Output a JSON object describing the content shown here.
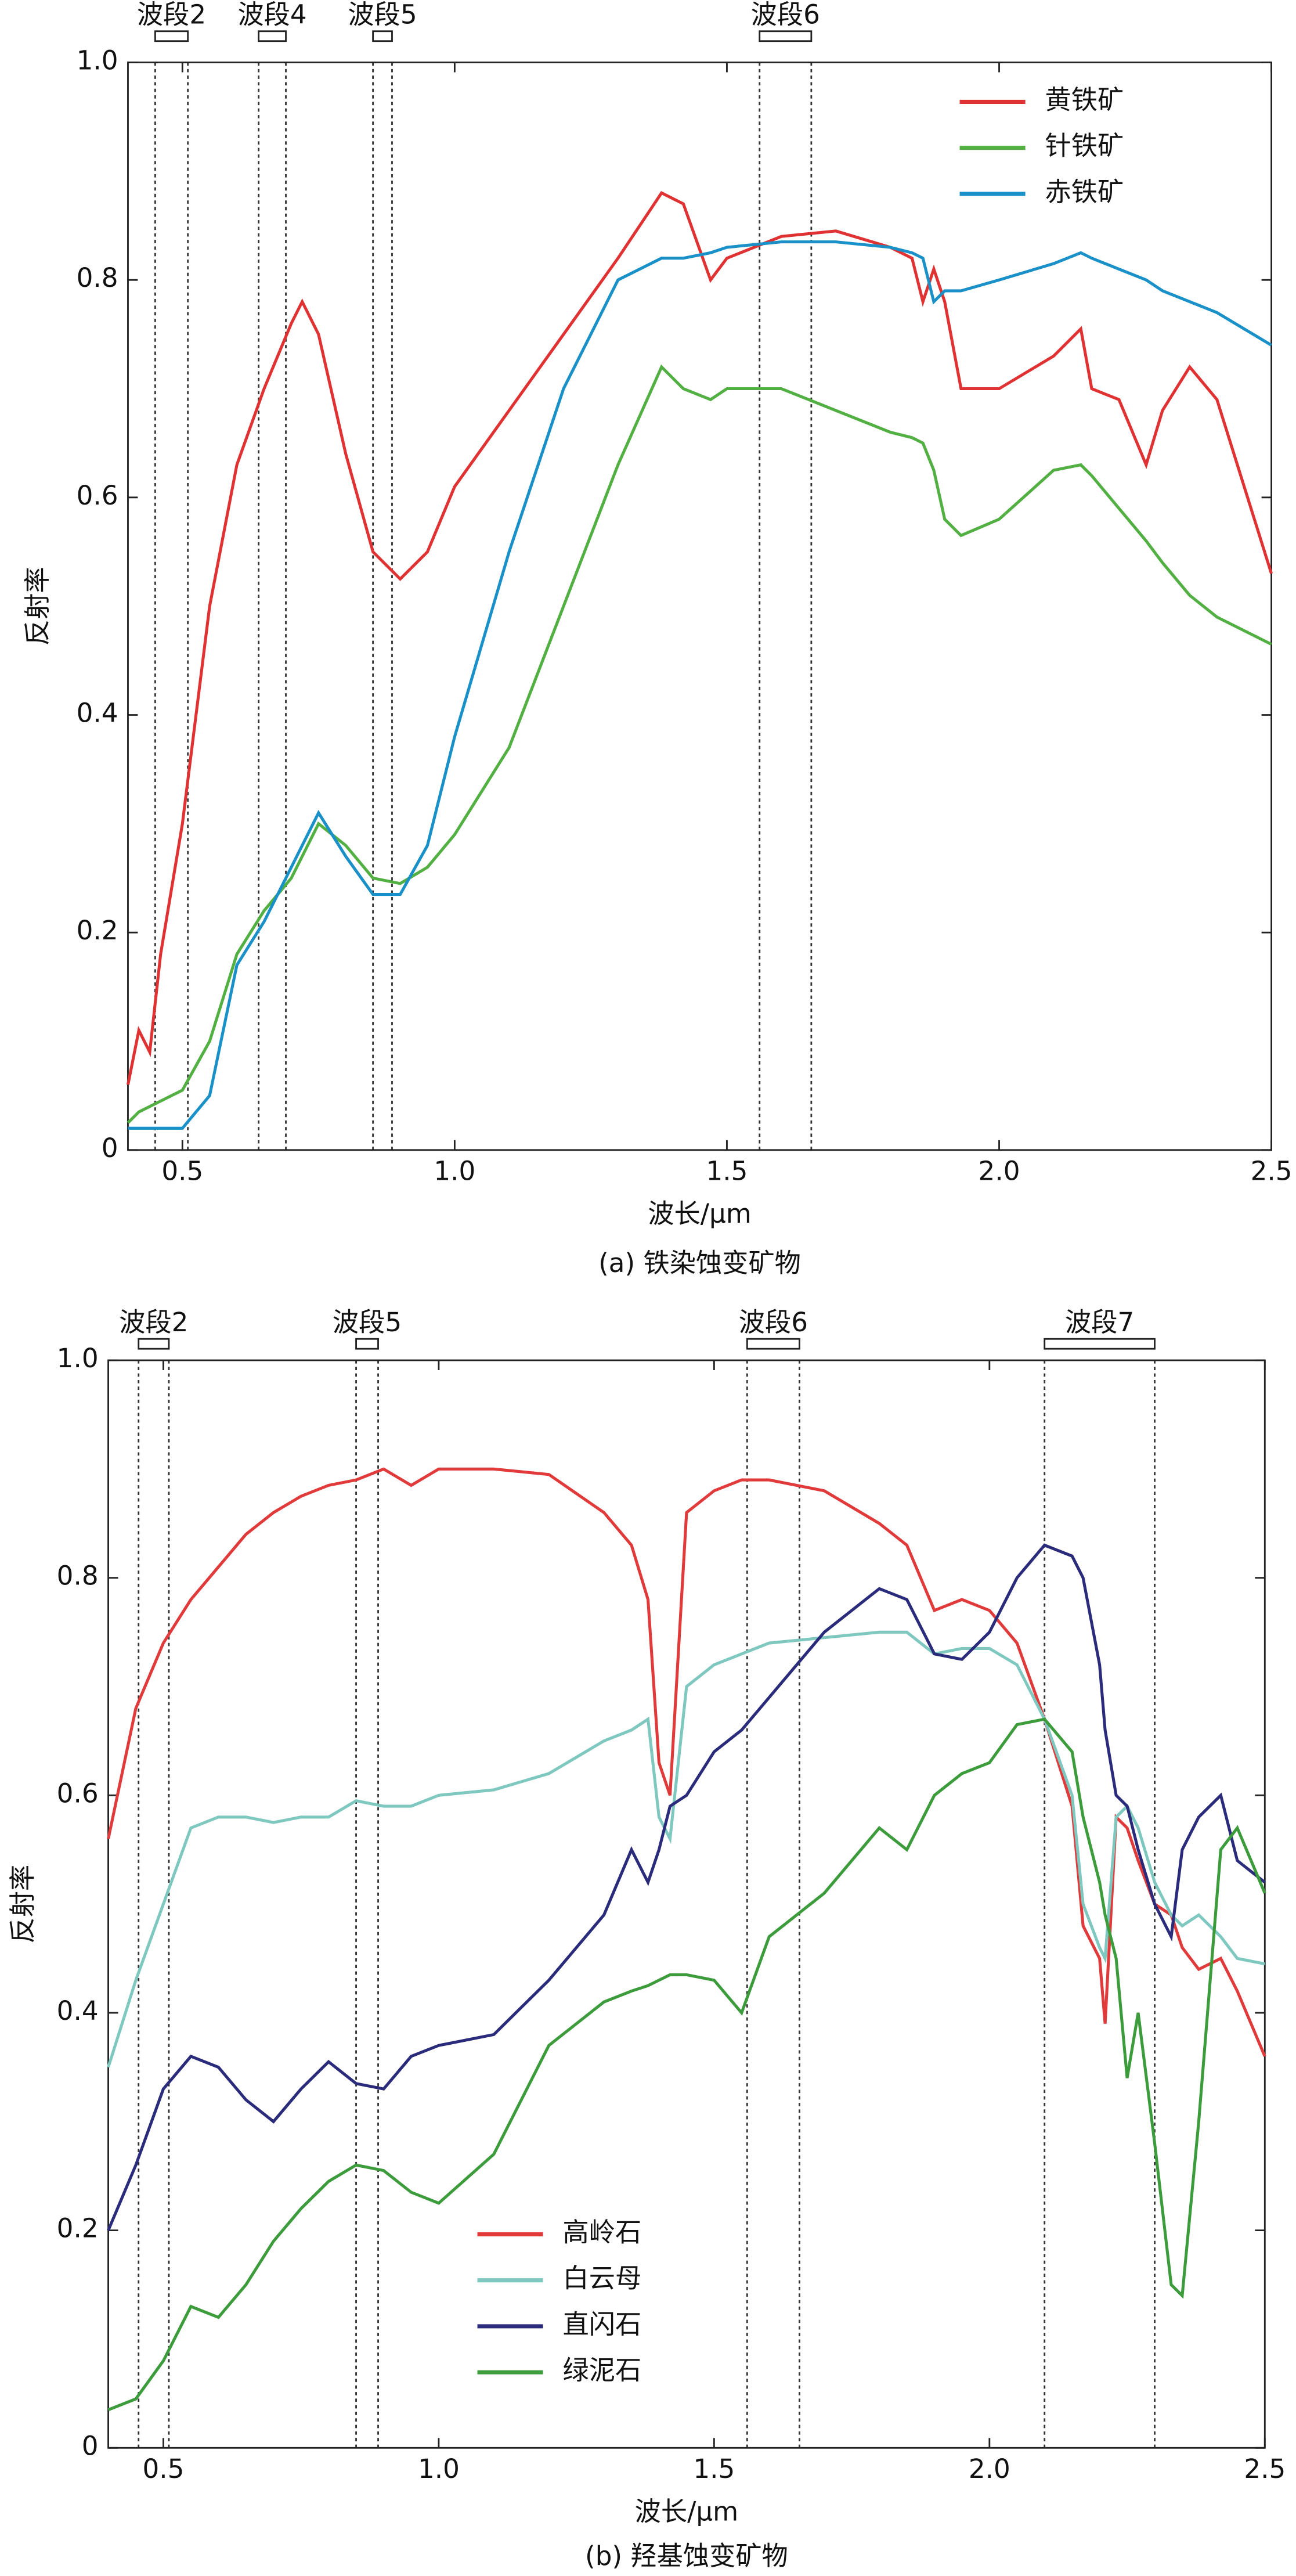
{
  "chart_data": [
    {
      "type": "line",
      "caption": "(a) 铁染蚀变矿物",
      "xlabel": "波长/μm",
      "ylabel": "反射率",
      "x": [
        0.4,
        0.42,
        0.44,
        0.46,
        0.5,
        0.55,
        0.6,
        0.65,
        0.7,
        0.72,
        0.75,
        0.8,
        0.85,
        0.9,
        0.95,
        1.0,
        1.1,
        1.2,
        1.3,
        1.38,
        1.42,
        1.47,
        1.5,
        1.6,
        1.7,
        1.8,
        1.84,
        1.86,
        1.88,
        1.9,
        1.93,
        2.0,
        2.1,
        2.15,
        2.17,
        2.22,
        2.27,
        2.3,
        2.35,
        2.4,
        2.5
      ],
      "series": [
        {
          "name": "黄铁矿",
          "color": "#e03232",
          "values": [
            0.06,
            0.11,
            0.09,
            0.18,
            0.3,
            0.5,
            0.63,
            0.7,
            0.76,
            0.78,
            0.75,
            0.64,
            0.55,
            0.525,
            0.55,
            0.61,
            0.68,
            0.75,
            0.82,
            0.88,
            0.87,
            0.8,
            0.82,
            0.84,
            0.845,
            0.83,
            0.82,
            0.78,
            0.81,
            0.78,
            0.7,
            0.7,
            0.73,
            0.755,
            0.7,
            0.69,
            0.63,
            0.68,
            0.72,
            0.69,
            0.53
          ]
        },
        {
          "name": "针铁矿",
          "color": "#52b043",
          "values": [
            0.025,
            0.035,
            0.04,
            0.045,
            0.055,
            0.1,
            0.18,
            0.22,
            0.25,
            0.27,
            0.3,
            0.28,
            0.25,
            0.245,
            0.26,
            0.29,
            0.37,
            0.5,
            0.63,
            0.72,
            0.7,
            0.69,
            0.7,
            0.7,
            0.68,
            0.66,
            0.655,
            0.65,
            0.625,
            0.58,
            0.565,
            0.58,
            0.625,
            0.63,
            0.62,
            0.59,
            0.56,
            0.54,
            0.51,
            0.49,
            0.465
          ]
        },
        {
          "name": "赤铁矿",
          "color": "#1a90c8",
          "values": [
            0.02,
            0.02,
            0.02,
            0.02,
            0.02,
            0.05,
            0.17,
            0.21,
            0.26,
            0.28,
            0.31,
            0.27,
            0.235,
            0.235,
            0.28,
            0.38,
            0.55,
            0.7,
            0.8,
            0.82,
            0.82,
            0.825,
            0.83,
            0.835,
            0.835,
            0.83,
            0.825,
            0.82,
            0.78,
            0.79,
            0.79,
            0.8,
            0.815,
            0.825,
            0.82,
            0.81,
            0.8,
            0.79,
            0.78,
            0.77,
            0.74
          ]
        }
      ],
      "xlim": [
        0.4,
        2.5
      ],
      "ylim": [
        0,
        1
      ],
      "xticks": [
        0.5,
        {
          "value": 1,
          "label": "1.0"
        },
        1.5,
        {
          "value": 2,
          "label": "2.0"
        },
        2.5
      ],
      "yticks": [
        0,
        0.2,
        0.4,
        0.6,
        0.8,
        {
          "value": 1,
          "label": "1.0"
        }
      ],
      "grid": false,
      "legend": "upper right",
      "bands": [
        {
          "label": "波段2",
          "start": 0.45,
          "end": 0.51
        },
        {
          "label": "波段4",
          "start": 0.64,
          "end": 0.69
        },
        {
          "label": "波段5",
          "start": 0.85,
          "end": 0.885
        },
        {
          "label": "波段6",
          "start": 1.56,
          "end": 1.655
        }
      ]
    },
    {
      "type": "line",
      "caption": "(b) 羟基蚀变矿物",
      "xlabel": "波长/μm",
      "ylabel": "反射率",
      "x": [
        0.4,
        0.45,
        0.5,
        0.55,
        0.6,
        0.65,
        0.7,
        0.75,
        0.8,
        0.85,
        0.9,
        0.95,
        1.0,
        1.1,
        1.2,
        1.3,
        1.35,
        1.38,
        1.4,
        1.42,
        1.45,
        1.5,
        1.55,
        1.6,
        1.7,
        1.8,
        1.85,
        1.9,
        1.95,
        2.0,
        2.05,
        2.1,
        2.15,
        2.17,
        2.2,
        2.21,
        2.23,
        2.25,
        2.27,
        2.3,
        2.33,
        2.35,
        2.38,
        2.42,
        2.45,
        2.5
      ],
      "series": [
        {
          "name": "高岭石",
          "color": "#e03a3a",
          "values": [
            0.56,
            0.68,
            0.74,
            0.78,
            0.81,
            0.84,
            0.86,
            0.875,
            0.885,
            0.89,
            0.9,
            0.885,
            0.9,
            0.9,
            0.895,
            0.86,
            0.83,
            0.78,
            0.63,
            0.6,
            0.86,
            0.88,
            0.89,
            0.89,
            0.88,
            0.85,
            0.83,
            0.77,
            0.78,
            0.77,
            0.74,
            0.67,
            0.59,
            0.48,
            0.45,
            0.39,
            0.58,
            0.57,
            0.54,
            0.5,
            0.49,
            0.46,
            0.44,
            0.45,
            0.42,
            0.36
          ]
        },
        {
          "name": "白云母",
          "color": "#7ec8c0",
          "values": [
            0.35,
            0.43,
            0.5,
            0.57,
            0.58,
            0.58,
            0.575,
            0.58,
            0.58,
            0.595,
            0.59,
            0.59,
            0.6,
            0.605,
            0.62,
            0.65,
            0.66,
            0.67,
            0.58,
            0.56,
            0.7,
            0.72,
            0.73,
            0.74,
            0.745,
            0.75,
            0.75,
            0.73,
            0.735,
            0.735,
            0.72,
            0.67,
            0.6,
            0.5,
            0.46,
            0.45,
            0.58,
            0.59,
            0.57,
            0.52,
            0.49,
            0.48,
            0.49,
            0.47,
            0.45,
            0.445
          ]
        },
        {
          "name": "直闪石",
          "color": "#2b2b7c",
          "values": [
            0.2,
            0.26,
            0.33,
            0.36,
            0.35,
            0.32,
            0.3,
            0.33,
            0.355,
            0.335,
            0.33,
            0.36,
            0.37,
            0.38,
            0.43,
            0.49,
            0.55,
            0.52,
            0.55,
            0.59,
            0.6,
            0.64,
            0.66,
            0.69,
            0.75,
            0.79,
            0.78,
            0.73,
            0.725,
            0.75,
            0.8,
            0.83,
            0.82,
            0.8,
            0.72,
            0.66,
            0.6,
            0.59,
            0.55,
            0.5,
            0.47,
            0.55,
            0.58,
            0.6,
            0.54,
            0.52
          ]
        },
        {
          "name": "绿泥石",
          "color": "#3c9c3c",
          "values": [
            0.035,
            0.045,
            0.08,
            0.13,
            0.12,
            0.15,
            0.19,
            0.22,
            0.245,
            0.26,
            0.255,
            0.235,
            0.225,
            0.27,
            0.37,
            0.41,
            0.42,
            0.425,
            0.43,
            0.435,
            0.435,
            0.43,
            0.4,
            0.47,
            0.51,
            0.57,
            0.55,
            0.6,
            0.62,
            0.63,
            0.665,
            0.67,
            0.64,
            0.58,
            0.52,
            0.49,
            0.45,
            0.34,
            0.4,
            0.28,
            0.15,
            0.14,
            0.3,
            0.55,
            0.57,
            0.51
          ]
        }
      ],
      "xlim": [
        0.4,
        2.5
      ],
      "ylim": [
        0,
        1
      ],
      "xticks": [
        0.5,
        {
          "value": 1,
          "label": "1.0"
        },
        1.5,
        {
          "value": 2,
          "label": "2.0"
        },
        2.5
      ],
      "yticks": [
        0,
        0.2,
        0.4,
        0.6,
        0.8,
        {
          "value": 1,
          "label": "1.0"
        }
      ],
      "grid": false,
      "legend": "lower left",
      "bands": [
        {
          "label": "波段2",
          "start": 0.455,
          "end": 0.51
        },
        {
          "label": "波段5",
          "start": 0.85,
          "end": 0.89
        },
        {
          "label": "波段6",
          "start": 1.56,
          "end": 1.655
        },
        {
          "label": "波段7",
          "start": 2.1,
          "end": 2.3
        }
      ]
    }
  ]
}
